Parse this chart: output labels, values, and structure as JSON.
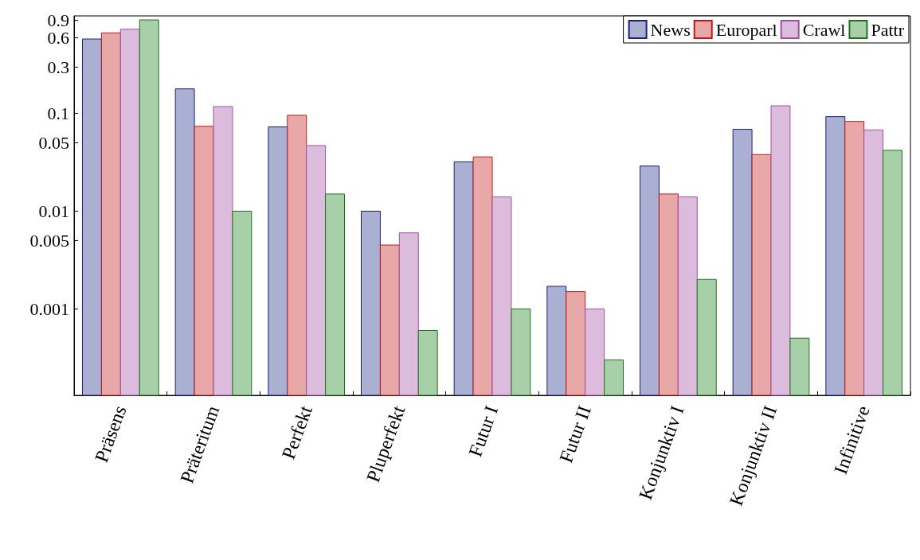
{
  "chart_data": {
    "type": "bar",
    "categories": [
      "Präsens",
      "Präteritum",
      "Perfekt",
      "Pluperfekt",
      "Futur I",
      "Futur II",
      "Konjunktiv I",
      "Konjunktiv II",
      "Infinitive"
    ],
    "series": [
      {
        "name": "News",
        "color": "#aab0d2",
        "values": [
          0.58,
          0.179,
          0.073,
          0.01,
          0.032,
          0.0017,
          0.029,
          0.069,
          0.093
        ]
      },
      {
        "name": "Europarl",
        "color": "#e8a8a8",
        "values": [
          0.67,
          0.074,
          0.096,
          0.0045,
          0.036,
          0.0015,
          0.015,
          0.038,
          0.083
        ]
      },
      {
        "name": "Crawl",
        "color": "#dcbcdc",
        "values": [
          0.73,
          0.118,
          0.047,
          0.006,
          0.014,
          0.001,
          0.014,
          0.12,
          0.068
        ]
      },
      {
        "name": "Pattr",
        "color": "#a8d0a8",
        "values": [
          0.91,
          0.01,
          0.015,
          0.0006,
          0.001,
          0.0003,
          0.002,
          0.0005,
          0.042
        ]
      }
    ],
    "log": "y",
    "ylim": [
      0.00013,
      1
    ],
    "yticks": [
      0.001,
      0.005,
      0.01,
      0.05,
      0.1,
      0.3,
      0.6,
      0.9
    ],
    "legend": "top right",
    "grid": false
  }
}
